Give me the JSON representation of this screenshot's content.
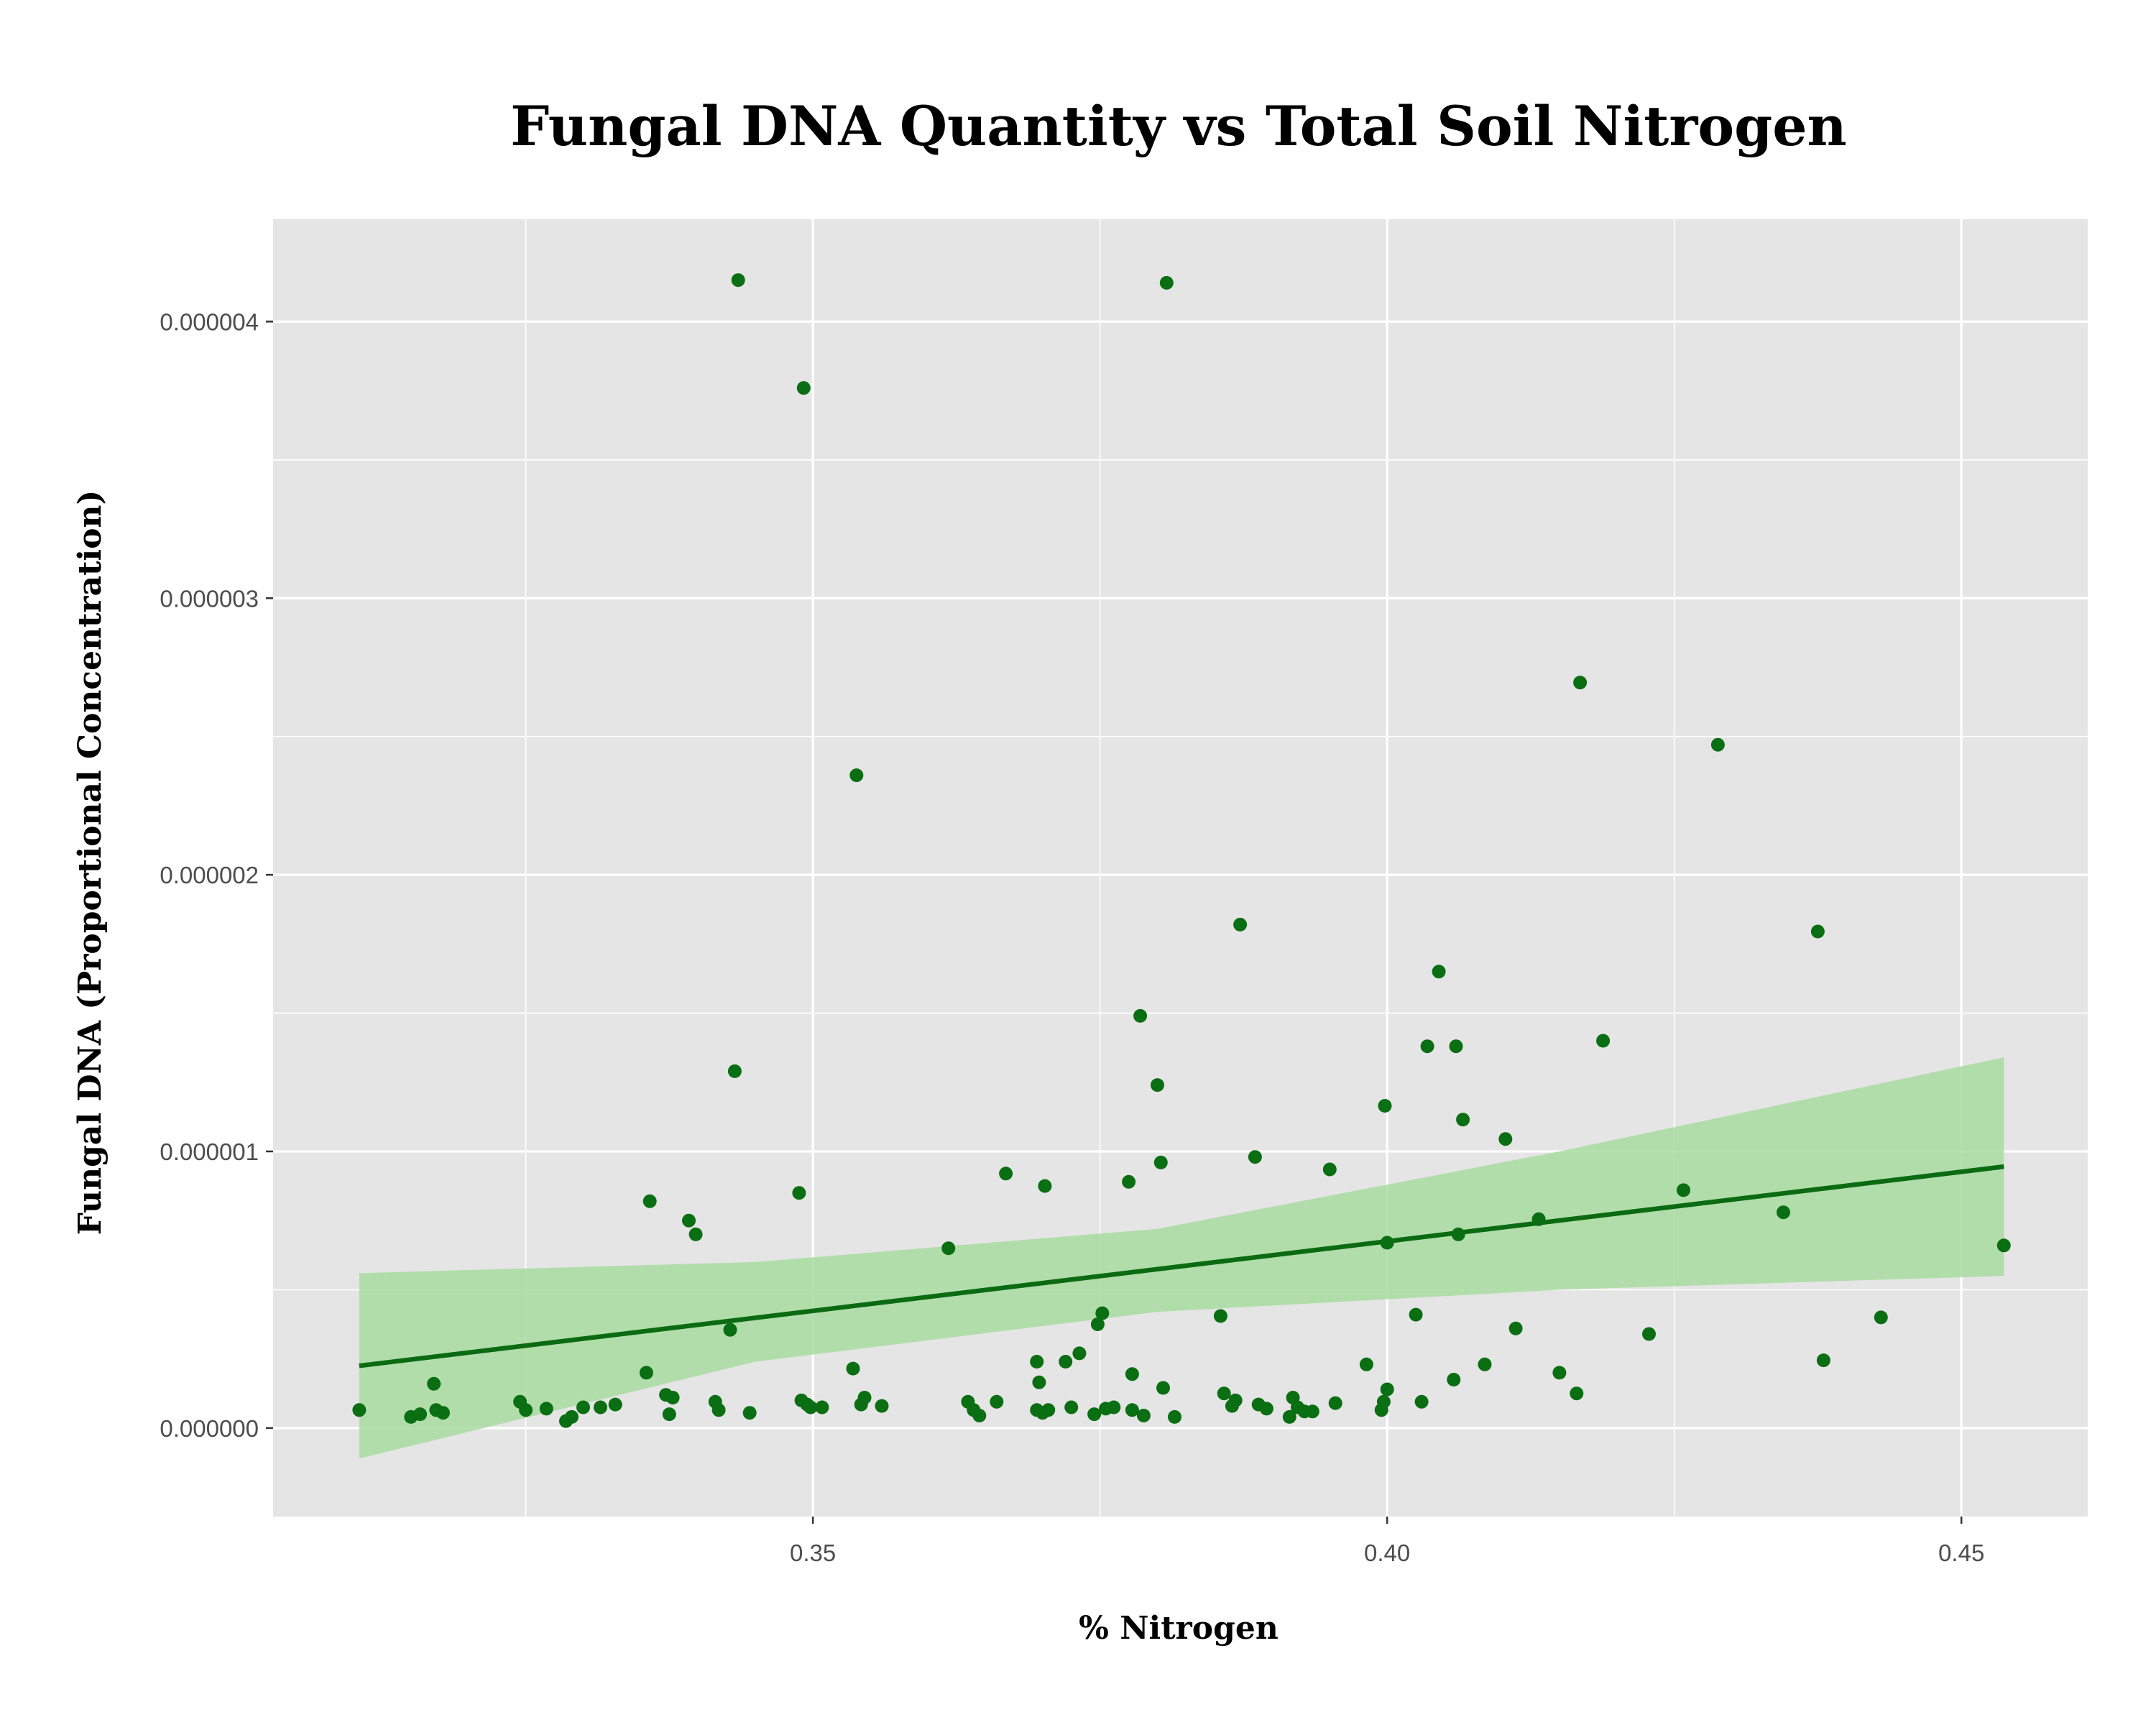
{
  "chart_data": {
    "type": "scatter",
    "title": "Fungal DNA Quantity vs Total Soil Nitrogen",
    "xlabel": "% Nitrogen",
    "ylabel": "Fungal DNA (Proportional Concentration)",
    "xlim": [
      0.303,
      0.461
    ],
    "ylim": [
      -3.2e-07,
      4.37e-06
    ],
    "x_ticks": [
      0.35,
      0.4,
      0.45
    ],
    "x_tick_labels": [
      "0.35",
      "0.40",
      "0.45"
    ],
    "x_minor_ticks": [
      0.325,
      0.375,
      0.425
    ],
    "y_ticks": [
      0,
      1e-06,
      2e-06,
      3e-06,
      4e-06
    ],
    "y_tick_labels": [
      "0.000000",
      "0.000001",
      "0.000002",
      "0.000003",
      "0.000004"
    ],
    "y_minor_ticks": [
      5e-07,
      1.5e-06,
      2.5e-06,
      3.5e-06
    ],
    "grid": true,
    "colors": {
      "panel": "#e5e5e5",
      "grid": "#ffffff",
      "points": "#0a6e12",
      "line": "#0b6b12",
      "ribbon": "#a8dca0"
    },
    "series": [
      {
        "type": "scatter",
        "x": [
          0.3105,
          0.315,
          0.3158,
          0.317,
          0.3172,
          0.3178,
          0.3245,
          0.325,
          0.3268,
          0.3285,
          0.329,
          0.33,
          0.3315,
          0.3328,
          0.3355,
          0.3358,
          0.3372,
          0.3375,
          0.3378,
          0.3392,
          0.3398,
          0.3415,
          0.3418,
          0.3428,
          0.3432,
          0.3435,
          0.3445,
          0.3488,
          0.349,
          0.3492,
          0.3495,
          0.3498,
          0.3508,
          0.3535,
          0.3538,
          0.3542,
          0.3545,
          0.356,
          0.3618,
          0.3635,
          0.364,
          0.3645,
          0.366,
          0.3668,
          0.3695,
          0.3695,
          0.3697,
          0.37,
          0.3702,
          0.3705,
          0.372,
          0.3725,
          0.3732,
          0.3745,
          0.3748,
          0.3752,
          0.3755,
          0.3762,
          0.3775,
          0.3778,
          0.3778,
          0.3785,
          0.3788,
          0.38,
          0.3803,
          0.3805,
          0.3808,
          0.3815,
          0.3855,
          0.3858,
          0.3865,
          0.3868,
          0.3872,
          0.3885,
          0.3888,
          0.3895,
          0.3915,
          0.3918,
          0.3922,
          0.3928,
          0.3935,
          0.395,
          0.3955,
          0.3982,
          0.3995,
          0.3997,
          0.3998,
          0.4,
          0.4,
          0.4025,
          0.403,
          0.4035,
          0.4045,
          0.4058,
          0.406,
          0.4062,
          0.4066,
          0.4085,
          0.4103,
          0.4112,
          0.4132,
          0.415,
          0.4165,
          0.4168,
          0.4188,
          0.4228,
          0.4258,
          0.4288,
          0.4345,
          0.4375,
          0.438,
          0.443,
          0.4537
        ],
        "y": [
          6.5e-08,
          4e-08,
          5e-08,
          1.6e-07,
          6.5e-08,
          5.5e-08,
          9.5e-08,
          6.5e-08,
          7e-08,
          2.5e-08,
          4e-08,
          7.5e-08,
          7.5e-08,
          8.5e-08,
          2e-07,
          8.2e-07,
          1.2e-07,
          5e-08,
          1.1e-07,
          7.5e-07,
          7e-07,
          9.5e-08,
          6.5e-08,
          3.55e-07,
          1.29e-06,
          4.15e-06,
          5.5e-08,
          8.5e-07,
          1e-07,
          3.76e-06,
          8.5e-08,
          7.5e-08,
          7.5e-08,
          2.15e-07,
          2.36e-06,
          8.5e-08,
          1.1e-07,
          8e-08,
          6.5e-07,
          9.5e-08,
          6.5e-08,
          4.5e-08,
          9.5e-08,
          9.2e-07,
          6.5e-08,
          2.4e-07,
          1.65e-07,
          5.5e-08,
          8.75e-07,
          6.5e-08,
          2.4e-07,
          7.5e-08,
          2.7e-07,
          5e-08,
          3.75e-07,
          4.15e-07,
          7e-08,
          7.5e-08,
          8.9e-07,
          1.95e-07,
          6.5e-08,
          1.49e-06,
          4.5e-08,
          1.24e-06,
          9.6e-07,
          1.45e-07,
          4.14e-06,
          4e-08,
          4.05e-07,
          1.25e-07,
          8e-08,
          1e-07,
          1.82e-06,
          9.8e-07,
          8.5e-08,
          7e-08,
          4e-08,
          1.1e-07,
          7.5e-08,
          6e-08,
          6e-08,
          9.35e-07,
          9e-08,
          2.3e-07,
          6.5e-08,
          9.5e-08,
          1.165e-06,
          6.7e-07,
          1.4e-07,
          4.1e-07,
          9.5e-08,
          1.38e-06,
          1.65e-06,
          1.75e-07,
          1.38e-06,
          7e-07,
          1.115e-06,
          2.3e-07,
          1.045e-06,
          3.6e-07,
          7.55e-07,
          2e-07,
          1.25e-07,
          2.695e-06,
          1.4e-06,
          3.4e-07,
          8.6e-07,
          2.47e-06,
          7.8e-07,
          1.795e-06,
          2.45e-07,
          4e-07,
          6.6e-07
        ]
      }
    ],
    "fit_line": {
      "type": "line",
      "x": [
        0.3105,
        0.4537
      ],
      "y": [
        2.25e-07,
        9.45e-07
      ]
    },
    "confidence_band": {
      "type": "area",
      "x": [
        0.3105,
        0.345,
        0.38,
        0.415,
        0.4537
      ],
      "upper": [
        5.6e-07,
        6e-07,
        7.2e-07,
        1e-06,
        1.34e-06
      ],
      "lower": [
        -1.1e-07,
        2.4e-07,
        4.2e-07,
        5e-07,
        5.5e-07
      ]
    }
  }
}
